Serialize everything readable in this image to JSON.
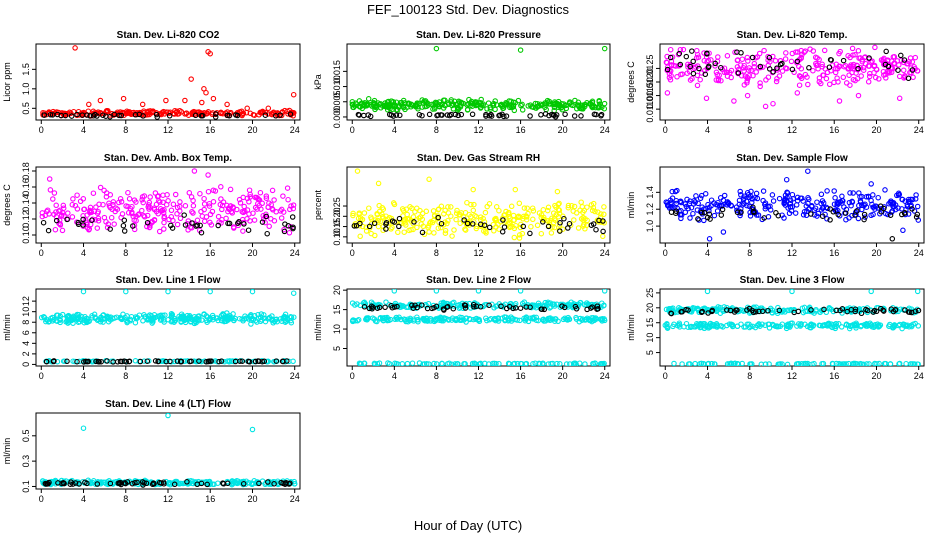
{
  "figure": {
    "title": "FEF_100123  Std. Dev. Diagnostics",
    "xlabel": "Hour of Day (UTC)"
  },
  "chart_data": [
    {
      "type": "scatter",
      "title": "Stan. Dev. Li-820 CO2",
      "ylabel": "Licor ppm",
      "xlim": [
        -0.5,
        24.5
      ],
      "ylim": [
        0.2,
        2.15
      ],
      "xticks": [
        0,
        4,
        8,
        12,
        16,
        20,
        24
      ],
      "yticks": [
        0.5,
        1.0,
        1.5
      ],
      "ytick_labels": [
        "0.5",
        "1.0",
        "1.5"
      ],
      "series": [
        {
          "color": "#ff0000",
          "band": [
            0.3,
            0.45
          ],
          "n": 220,
          "outliers": [
            [
              3.2,
              2.05
            ],
            [
              14.2,
              1.25
            ],
            [
              15.8,
              1.95
            ],
            [
              16.0,
              1.9
            ],
            [
              15.4,
              1.0
            ],
            [
              15.6,
              0.9
            ],
            [
              16.3,
              0.75
            ],
            [
              13.6,
              0.7
            ],
            [
              15.2,
              0.65
            ],
            [
              17.6,
              0.6
            ],
            [
              9.6,
              0.6
            ],
            [
              23.9,
              0.85
            ],
            [
              11.8,
              0.7
            ],
            [
              7.8,
              0.75
            ],
            [
              5.6,
              0.7
            ],
            [
              4.5,
              0.6
            ],
            [
              19.5,
              0.5
            ],
            [
              21.5,
              0.5
            ]
          ]
        },
        {
          "color": "#000000",
          "band": [
            0.27,
            0.36
          ],
          "n": 40,
          "outliers": []
        }
      ]
    },
    {
      "type": "scatter",
      "title": "Stan. Dev. Li-820 Pressure",
      "ylabel": "kPa",
      "xlim": [
        -0.5,
        24.5
      ],
      "ylim": [
        -0.001,
        0.024
      ],
      "xticks": [
        0,
        4,
        8,
        12,
        16,
        20,
        24
      ],
      "yticks": [
        0.0,
        0.005,
        0.01,
        0.015
      ],
      "ytick_labels": [
        "0.000",
        "0.005",
        "0.010",
        "0.015"
      ],
      "series": [
        {
          "color": "#00c800",
          "band": [
            0.002,
            0.006
          ],
          "n": 300,
          "outliers": [
            [
              8.0,
              0.0225
            ],
            [
              16.0,
              0.022
            ],
            [
              24.0,
              0.0225
            ]
          ]
        },
        {
          "color": "#000000",
          "band": [
            0.0,
            0.0012
          ],
          "n": 50,
          "outliers": []
        }
      ]
    },
    {
      "type": "scatter",
      "title": "Stan. Dev. Li-820 Temp.",
      "ylabel": "degrees C",
      "xlim": [
        -0.5,
        24.5
      ],
      "ylim": [
        0.0106,
        0.0134
      ],
      "xticks": [
        0,
        4,
        8,
        12,
        16,
        20,
        24
      ],
      "yticks": [
        0.011,
        0.0115,
        0.012,
        0.0125
      ],
      "ytick_labels": [
        "0.0110",
        "0.0115",
        "0.0120",
        "0.0125"
      ],
      "series": [
        {
          "color": "#ff00ff",
          "band": [
            0.0118,
            0.0133
          ],
          "n": 300,
          "outliers": [
            [
              0.2,
              0.0116
            ],
            [
              3.9,
              0.0114
            ],
            [
              6.5,
              0.0113
            ],
            [
              9.5,
              0.0111
            ],
            [
              10.2,
              0.0112
            ],
            [
              16.5,
              0.0113
            ],
            [
              18.3,
              0.0115
            ],
            [
              22.2,
              0.0114
            ],
            [
              12.5,
              0.0116
            ],
            [
              7.8,
              0.0115
            ]
          ]
        },
        {
          "color": "#000000",
          "band": [
            0.0121,
            0.0132
          ],
          "n": 45,
          "outliers": []
        }
      ]
    },
    {
      "type": "scatter",
      "title": "Stan. Dev. Amb. Box Temp.",
      "ylabel": "degrees C",
      "xlim": [
        -0.5,
        24.5
      ],
      "ylim": [
        0.09,
        0.185
      ],
      "xticks": [
        0,
        4,
        8,
        12,
        16,
        20,
        24
      ],
      "yticks": [
        0.1,
        0.12,
        0.14,
        0.16,
        0.18
      ],
      "ytick_labels": [
        "0.10",
        "0.12",
        "0.14",
        "0.16",
        "0.18"
      ],
      "series": [
        {
          "color": "#ff00ff",
          "band": [
            0.098,
            0.165
          ],
          "n": 300,
          "outliers": [
            [
              14.5,
              0.18
            ],
            [
              15.8,
              0.175
            ],
            [
              0.8,
              0.17
            ]
          ]
        },
        {
          "color": "#000000",
          "band": [
            0.1,
            0.125
          ],
          "n": 40,
          "outliers": []
        }
      ]
    },
    {
      "type": "scatter",
      "title": "Stan. Dev. Gas Stream RH",
      "ylabel": "percent",
      "xlim": [
        -0.5,
        24.5
      ],
      "ylim": [
        0.07,
        0.44
      ],
      "xticks": [
        0,
        4,
        8,
        12,
        16,
        20,
        24
      ],
      "yticks": [
        0.1,
        0.15,
        0.2,
        0.25
      ],
      "ytick_labels": [
        "0.10",
        "0.15",
        "0.20",
        "0.25"
      ],
      "series": [
        {
          "color": "#ffff00",
          "band": [
            0.09,
            0.28
          ],
          "n": 300,
          "outliers": [
            [
              0.5,
              0.42
            ],
            [
              7.3,
              0.38
            ],
            [
              2.5,
              0.36
            ],
            [
              11.5,
              0.33
            ],
            [
              15.5,
              0.33
            ],
            [
              19.5,
              0.32
            ]
          ]
        },
        {
          "color": "#000000",
          "band": [
            0.09,
            0.22
          ],
          "n": 40,
          "outliers": []
        }
      ]
    },
    {
      "type": "scatter",
      "title": "Stan. Dev. Sample Flow",
      "ylabel": "ml/min",
      "xlim": [
        -0.5,
        24.5
      ],
      "ylim": [
        0.8,
        1.7
      ],
      "xticks": [
        0,
        4,
        8,
        12,
        16,
        20,
        24
      ],
      "yticks": [
        1.0,
        1.2,
        1.4
      ],
      "ytick_labels": [
        "1.0",
        "1.2",
        "1.4"
      ],
      "series": [
        {
          "color": "#0000ff",
          "band": [
            1.05,
            1.45
          ],
          "n": 300,
          "outliers": [
            [
              13.5,
              1.65
            ],
            [
              4.2,
              0.85
            ],
            [
              5.5,
              0.93
            ],
            [
              11.5,
              1.55
            ],
            [
              19.5,
              1.5
            ],
            [
              22.5,
              0.95
            ]
          ]
        },
        {
          "color": "#000000",
          "band": [
            1.05,
            1.25
          ],
          "n": 40,
          "outliers": [
            [
              21.5,
              0.85
            ]
          ]
        }
      ]
    },
    {
      "type": "scatter",
      "title": "Stan. Dev. Line 1 Flow",
      "ylabel": "ml/min",
      "xlim": [
        -0.5,
        24.5
      ],
      "ylim": [
        -0.3,
        14.3
      ],
      "xticks": [
        0,
        4,
        8,
        12,
        16,
        20,
        24
      ],
      "yticks": [
        0,
        2,
        4,
        6,
        8,
        10,
        12
      ],
      "ytick_labels": [
        "0",
        "2",
        "4",
        "6",
        "8",
        "10",
        "12"
      ],
      "series": [
        {
          "color": "#00e5e5",
          "band": [
            7.6,
            9.8
          ],
          "n": 300,
          "outliers": [
            [
              4.0,
              13.8
            ],
            [
              8.0,
              13.8
            ],
            [
              12.0,
              13.8
            ],
            [
              16.0,
              13.8
            ],
            [
              20.0,
              13.8
            ],
            [
              23.9,
              13.5
            ]
          ]
        },
        {
          "color": "#00e5e5",
          "band": [
            0.45,
            0.75
          ],
          "n": 90,
          "outliers": []
        },
        {
          "color": "#000000",
          "band": [
            0.45,
            0.7
          ],
          "n": 60,
          "outliers": []
        }
      ]
    },
    {
      "type": "scatter",
      "title": "Stan. Dev. Line 2 Flow",
      "ylabel": "ml/min",
      "xlim": [
        -0.5,
        24.5
      ],
      "ylim": [
        0.5,
        20.3
      ],
      "xticks": [
        0,
        4,
        8,
        12,
        16,
        20,
        24
      ],
      "yticks": [
        5,
        10,
        15,
        20
      ],
      "ytick_labels": [
        "5",
        "10",
        "15",
        "20"
      ],
      "series": [
        {
          "color": "#00e5e5",
          "band": [
            15.2,
            17.0
          ],
          "n": 200,
          "outliers": [
            [
              4.0,
              19.8
            ],
            [
              8.0,
              19.8
            ],
            [
              12.0,
              19.8
            ],
            [
              16.0,
              19.8
            ],
            [
              24.0,
              19.8
            ]
          ]
        },
        {
          "color": "#00e5e5",
          "band": [
            11.8,
            13.2
          ],
          "n": 200,
          "outliers": []
        },
        {
          "color": "#00e5e5",
          "band": [
            0.9,
            1.3
          ],
          "n": 90,
          "outliers": []
        },
        {
          "color": "#000000",
          "band": [
            14.8,
            16.5
          ],
          "n": 55,
          "outliers": []
        }
      ]
    },
    {
      "type": "scatter",
      "title": "Stan. Dev. Line 3 Flow",
      "ylabel": "ml/min",
      "xlim": [
        -0.5,
        24.5
      ],
      "ylim": [
        0.5,
        26.3
      ],
      "xticks": [
        0,
        4,
        8,
        12,
        16,
        20,
        24
      ],
      "yticks": [
        5,
        10,
        15,
        20,
        25
      ],
      "ytick_labels": [
        "5",
        "10",
        "15",
        "20",
        "25"
      ],
      "series": [
        {
          "color": "#00e5e5",
          "band": [
            18.0,
            20.5
          ],
          "n": 200,
          "outliers": [
            [
              4.0,
              25.5
            ],
            [
              12.0,
              25.5
            ],
            [
              19.5,
              25.5
            ],
            [
              23.9,
              25.5
            ]
          ]
        },
        {
          "color": "#00e5e5",
          "band": [
            13.0,
            15.0
          ],
          "n": 200,
          "outliers": []
        },
        {
          "color": "#00e5e5",
          "band": [
            1.0,
            1.4
          ],
          "n": 90,
          "outliers": []
        },
        {
          "color": "#000000",
          "band": [
            18.0,
            20.0
          ],
          "n": 55,
          "outliers": []
        }
      ]
    },
    {
      "type": "scatter",
      "title": "Stan. Dev. Line 4 (LT) Flow",
      "ylabel": "ml/min",
      "xlim": [
        -0.5,
        24.5
      ],
      "ylim": [
        0.08,
        0.68
      ],
      "xticks": [
        0,
        4,
        8,
        12,
        16,
        20,
        24
      ],
      "yticks": [
        0.1,
        0.3,
        0.5
      ],
      "ytick_labels": [
        "0.1",
        "0.3",
        "0.5"
      ],
      "series": [
        {
          "color": "#00e5e5",
          "band": [
            0.11,
            0.15
          ],
          "n": 250,
          "outliers": [
            [
              4.0,
              0.56
            ],
            [
              12.0,
              0.66
            ],
            [
              20.0,
              0.55
            ]
          ]
        },
        {
          "color": "#000000",
          "band": [
            0.11,
            0.14
          ],
          "n": 60,
          "outliers": []
        }
      ]
    }
  ]
}
